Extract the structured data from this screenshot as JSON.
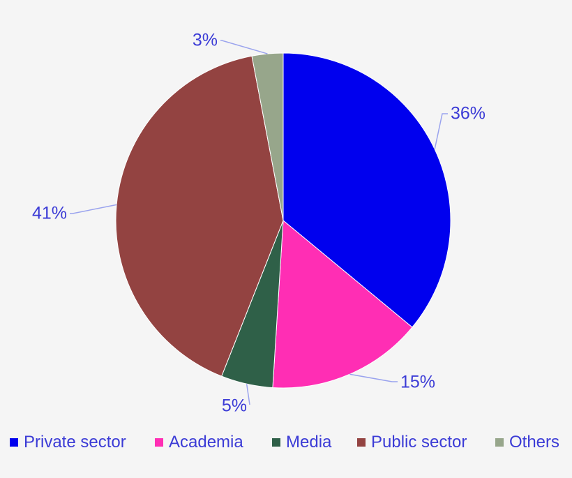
{
  "chart_data": {
    "type": "pie",
    "start_angle_deg": 0,
    "direction": "clockwise",
    "legend_position": "bottom",
    "label_color": "#3b3bd6",
    "leader_color": "#9aa3ee",
    "slices": [
      {
        "name": "Private sector",
        "value": 36,
        "label": "36%",
        "color": "#0000ee"
      },
      {
        "name": "Academia",
        "value": 15,
        "label": "15%",
        "color": "#ff2eb4"
      },
      {
        "name": "Media",
        "value": 5,
        "label": "5%",
        "color": "#2f6048"
      },
      {
        "name": "Public sector",
        "value": 41,
        "label": "41%",
        "color": "#934341"
      },
      {
        "name": "Others",
        "value": 3,
        "label": "3%",
        "color": "#97a68b"
      }
    ]
  }
}
